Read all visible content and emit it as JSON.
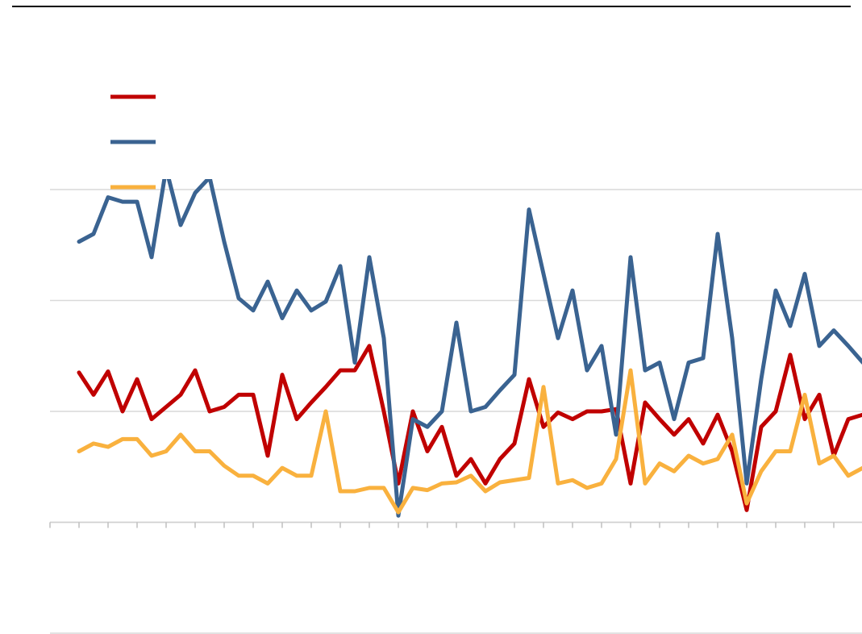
{
  "chart_data": {
    "type": "line",
    "x": [
      1,
      1.5,
      2,
      2.5,
      3,
      3.5,
      4,
      4.5,
      5,
      5.5,
      6,
      6.5,
      7,
      7.5,
      8,
      8.5,
      9,
      9.5,
      10,
      10.5,
      11,
      11.5,
      12,
      12.5,
      13,
      13.5,
      14,
      14.5,
      15,
      15.5,
      16,
      16.5,
      17,
      17.5,
      18,
      18.5,
      19,
      19.5,
      20,
      20.5,
      21,
      21.5,
      22,
      22.5,
      23,
      23.5,
      24,
      24.5,
      25,
      25.5,
      26,
      26.5,
      27,
      27.5,
      28
    ],
    "series": [
      {
        "color": "#c00000",
        "values": [
          1.35,
          1.15,
          1.36,
          1.0,
          1.29,
          0.93,
          1.04,
          1.15,
          1.37,
          1.0,
          1.04,
          1.15,
          1.15,
          0.6,
          1.33,
          0.93,
          1.08,
          1.22,
          1.37,
          1.37,
          1.59,
          1.0,
          0.35,
          1.0,
          0.64,
          0.86,
          0.42,
          0.57,
          0.35,
          0.57,
          0.71,
          1.29,
          0.86,
          0.99,
          0.93,
          1.0,
          1.0,
          1.02,
          0.35,
          1.08,
          0.93,
          0.79,
          0.93,
          0.71,
          0.97,
          0.64,
          0.11,
          0.86,
          1.0,
          1.51,
          0.93,
          1.15,
          0.6,
          0.93,
          0.97
        ]
      },
      {
        "color": "#3a6391",
        "values": [
          2.53,
          2.6,
          2.93,
          2.89,
          2.89,
          2.39,
          3.19,
          2.68,
          2.97,
          3.11,
          2.53,
          2.02,
          1.91,
          2.17,
          1.84,
          2.09,
          1.91,
          1.99,
          2.31,
          1.44,
          2.39,
          1.66,
          0.06,
          0.93,
          0.86,
          1.0,
          1.8,
          1.0,
          1.04,
          1.19,
          1.33,
          2.82,
          2.24,
          1.66,
          2.09,
          1.37,
          1.59,
          0.79,
          2.39,
          1.37,
          1.44,
          0.93,
          1.44,
          1.48,
          2.6,
          1.66,
          0.35,
          1.29,
          2.09,
          1.77,
          2.24,
          1.59,
          1.73,
          1.59,
          1.44
        ]
      },
      {
        "color": "#f9b13e",
        "values": [
          0.64,
          0.71,
          0.68,
          0.75,
          0.75,
          0.6,
          0.64,
          0.79,
          0.64,
          0.64,
          0.51,
          0.42,
          0.42,
          0.35,
          0.49,
          0.42,
          0.42,
          1.0,
          0.28,
          0.28,
          0.31,
          0.31,
          0.09,
          0.31,
          0.29,
          0.35,
          0.36,
          0.42,
          0.28,
          0.36,
          0.38,
          0.4,
          1.22,
          0.35,
          0.38,
          0.31,
          0.35,
          0.57,
          1.37,
          0.35,
          0.53,
          0.46,
          0.6,
          0.53,
          0.57,
          0.79,
          0.17,
          0.46,
          0.64,
          0.64,
          1.15,
          0.53,
          0.6,
          0.42,
          0.49
        ]
      }
    ],
    "xlim": [
      0,
      28
    ],
    "xticks": [
      0,
      1,
      2,
      3,
      4,
      5,
      6,
      7,
      8,
      9,
      10,
      11,
      12,
      13,
      14,
      15,
      16,
      17,
      18,
      19,
      20,
      21,
      22,
      23,
      24,
      25,
      26,
      27,
      28
    ],
    "ylim": [
      -1,
      3
    ],
    "yticks": [
      -1,
      0,
      1,
      2,
      3
    ],
    "grid": true,
    "legend": "upper left"
  }
}
